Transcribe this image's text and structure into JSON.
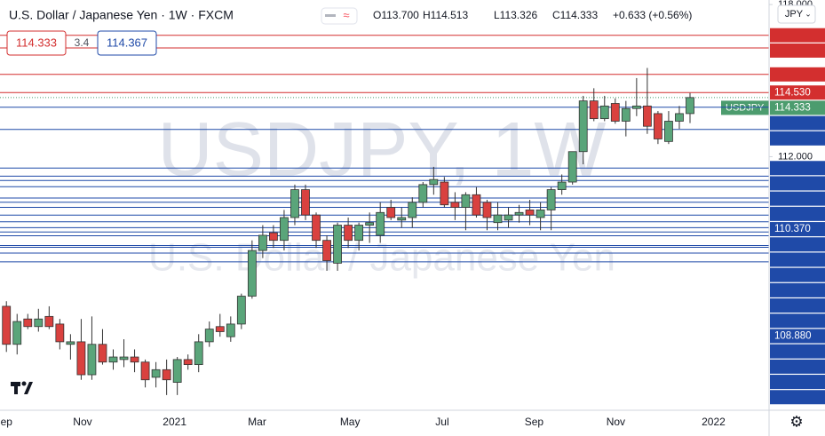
{
  "header": {
    "title": "U.S. Dollar / Japanese Yen · 1W · FXCM",
    "ohlc": {
      "open": "O113.700",
      "high": "H114.513",
      "low": "L113.326",
      "close": "C114.333",
      "change": "+0.633 (+0.56%)"
    },
    "sell": "114.333",
    "spread": "3.4",
    "buy": "114.367",
    "currency": "JPY",
    "watermark_symbol": "USDJPY, 1W",
    "watermark_name": "U.S. Dollar / Japanese Yen"
  },
  "chart_data": {
    "type": "candlestick",
    "up_color": "#5aa57a",
    "down_color": "#d9413f",
    "open": [
      106.1,
      104.6,
      105.6,
      105.3,
      105.7,
      105.4,
      104.6,
      104.7,
      103.4,
      104.6,
      103.9,
      104.0,
      104.1,
      103.9,
      103.3,
      103.6,
      103.1,
      104.0,
      103.8,
      104.7,
      105.3,
      104.9,
      105.4,
      106.5,
      108.3,
      109.0,
      108.7,
      109.6,
      110.7,
      109.7,
      108.7,
      107.8,
      109.3,
      108.7,
      109.3,
      108.9,
      110.0,
      109.5,
      109.6,
      110.2,
      110.9,
      111.0,
      110.2,
      110.0,
      110.5,
      110.2,
      109.4,
      109.5,
      109.7,
      109.9,
      109.6,
      109.9,
      110.7,
      111.0,
      112.2,
      114.2,
      113.5,
      114.1,
      113.4,
      113.9,
      114.0,
      113.7,
      112.6,
      113.4,
      113.7
    ],
    "high": [
      106.3,
      105.8,
      105.8,
      106.0,
      106.1,
      105.6,
      105.0,
      105.6,
      105.7,
      105.2,
      104.4,
      104.8,
      104.4,
      104.0,
      103.9,
      104.0,
      104.1,
      104.2,
      105.0,
      105.5,
      105.8,
      105.7,
      106.6,
      108.7,
      109.3,
      109.3,
      109.9,
      110.9,
      110.9,
      109.8,
      108.9,
      109.4,
      109.6,
      109.4,
      109.8,
      110.2,
      110.3,
      110.0,
      110.4,
      111.0,
      111.6,
      111.2,
      110.6,
      110.6,
      110.8,
      110.3,
      110.2,
      110.0,
      110.1,
      110.3,
      110.2,
      110.8,
      111.3,
      112.2,
      114.4,
      114.7,
      114.4,
      114.3,
      114.2,
      115.1,
      115.5,
      113.8,
      113.8,
      114.0,
      114.513
    ],
    "low": [
      104.3,
      104.2,
      105.2,
      105.1,
      105.2,
      104.4,
      104.0,
      103.2,
      103.2,
      103.8,
      103.6,
      103.7,
      103.5,
      102.9,
      102.9,
      102.6,
      102.6,
      103.6,
      103.5,
      104.5,
      104.9,
      104.7,
      105.2,
      106.4,
      108.0,
      108.4,
      108.3,
      109.3,
      109.5,
      108.4,
      107.5,
      107.5,
      108.4,
      108.3,
      108.6,
      108.6,
      109.5,
      109.2,
      109.2,
      110.0,
      110.5,
      110.0,
      109.5,
      109.1,
      109.6,
      109.1,
      109.1,
      109.2,
      109.4,
      109.3,
      109.1,
      109.1,
      110.5,
      110.9,
      111.7,
      113.4,
      113.4,
      113.3,
      112.8,
      113.6,
      112.9,
      112.5,
      112.5,
      113.1,
      113.326
    ],
    "close": [
      104.6,
      105.5,
      105.3,
      105.6,
      105.3,
      104.7,
      104.7,
      103.4,
      104.6,
      103.9,
      104.1,
      104.1,
      103.9,
      103.2,
      103.6,
      103.2,
      104.0,
      103.8,
      104.7,
      105.2,
      105.1,
      105.4,
      106.5,
      108.3,
      108.9,
      108.7,
      109.6,
      110.7,
      109.7,
      108.7,
      107.9,
      109.3,
      108.7,
      109.3,
      109.4,
      109.8,
      109.6,
      109.6,
      110.2,
      110.9,
      111.1,
      110.1,
      110.0,
      110.5,
      109.7,
      109.6,
      109.7,
      109.7,
      109.8,
      109.7,
      109.9,
      110.7,
      111.0,
      112.2,
      114.2,
      113.5,
      114.0,
      113.4,
      113.9,
      114.0,
      113.2,
      112.7,
      113.4,
      113.7,
      114.333
    ],
    "last_price": {
      "name": "USDJPY",
      "value": 114.333,
      "color": "#4c9c6e"
    },
    "levels": [
      {
        "value": 116.789,
        "color": "#d32f2f"
      },
      {
        "value": 116.289,
        "color": "#d32f2f"
      },
      {
        "value": 115.246,
        "color": "#d32f2f"
      },
      {
        "value": 114.53,
        "label": "114.530",
        "color": "#d32f2f"
      },
      {
        "value": 113.953,
        "color": "#1f4aa8"
      },
      {
        "value": 113.074,
        "color": "#1f4aa8"
      },
      {
        "value": 111.552,
        "color": "#1f4aa8"
      },
      {
        "value": 111.233,
        "color": "#1f4aa8"
      },
      {
        "value": 111.064,
        "color": "#1f4aa8"
      },
      {
        "value": 110.815,
        "color": "#1f4aa8"
      },
      {
        "value": 110.37,
        "label": "110.370",
        "color": "#1f4aa8"
      },
      {
        "value": 110.203,
        "color": "#1f4aa8"
      },
      {
        "value": 110.002,
        "color": "#1f4aa8"
      },
      {
        "value": 109.694,
        "color": "#1f4aa8"
      },
      {
        "value": 109.434,
        "color": "#1f4aa8"
      },
      {
        "value": 109.203,
        "color": "#1f4aa8"
      },
      {
        "value": 109.031,
        "color": "#1f4aa8"
      },
      {
        "value": 108.88,
        "label": "108.880",
        "color": "#1f4aa8"
      },
      {
        "value": 108.497,
        "color": "#1f4aa8"
      },
      {
        "value": 108.428,
        "color": "#1f4aa8"
      },
      {
        "value": 108.199,
        "color": "#1f4aa8"
      },
      {
        "value": 107.852,
        "color": "#1f4aa8"
      }
    ],
    "ylim": [
      102.0,
      118.18
    ],
    "yticks": [
      {
        "value": 118,
        "label": "118.000"
      },
      {
        "value": 112,
        "label": "112.000"
      }
    ],
    "xlim": [
      -0.6,
      71.4
    ],
    "xticks": [
      {
        "value": -0.33,
        "label": "Sep"
      },
      {
        "value": 7.13,
        "label": "Nov"
      },
      {
        "value": 15.75,
        "label": "2021"
      },
      {
        "value": 23.47,
        "label": "Mar"
      },
      {
        "value": 32.17,
        "label": "May"
      },
      {
        "value": 40.8,
        "label": "Jul"
      },
      {
        "value": 49.4,
        "label": "Sep"
      },
      {
        "value": 57.05,
        "label": "Nov"
      },
      {
        "value": 66.2,
        "label": "2022"
      }
    ]
  }
}
